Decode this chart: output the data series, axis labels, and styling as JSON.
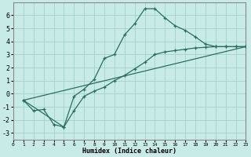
{
  "xlabel": "Humidex (Indice chaleur)",
  "background_color": "#c8ebe8",
  "grid_color": "#a8d5d0",
  "line_color": "#2a6e62",
  "xlim": [
    0,
    23
  ],
  "ylim": [
    -3.5,
    7.0
  ],
  "yticks": [
    -3,
    -2,
    -1,
    0,
    1,
    2,
    3,
    4,
    5,
    6
  ],
  "xticks": [
    0,
    1,
    2,
    3,
    4,
    5,
    6,
    7,
    8,
    9,
    10,
    11,
    12,
    13,
    14,
    15,
    16,
    17,
    18,
    19,
    20,
    21,
    22,
    23
  ],
  "line1_x": [
    1,
    2,
    3,
    4,
    5,
    6,
    7,
    8,
    9,
    10,
    11,
    12,
    13,
    14,
    15,
    16,
    17,
    18,
    19,
    20,
    21,
    22,
    23
  ],
  "line1_y": [
    -0.5,
    -1.3,
    -1.2,
    -2.35,
    -2.55,
    -0.2,
    0.35,
    1.1,
    2.7,
    3.0,
    4.5,
    5.35,
    6.5,
    6.5,
    5.8,
    5.2,
    4.85,
    4.35,
    3.8,
    3.6,
    3.6,
    3.6,
    3.6
  ],
  "line2_x": [
    1,
    5,
    6,
    7,
    8,
    9,
    10,
    11,
    12,
    13,
    14,
    15,
    16,
    17,
    18,
    19,
    20,
    21,
    22,
    23
  ],
  "line2_y": [
    -0.5,
    -2.55,
    -1.3,
    -0.2,
    0.2,
    0.5,
    1.0,
    1.4,
    1.9,
    2.4,
    3.0,
    3.2,
    3.3,
    3.4,
    3.5,
    3.55,
    3.6,
    3.6,
    3.6,
    3.6
  ],
  "line3_x": [
    1,
    23
  ],
  "line3_y": [
    -0.5,
    3.6
  ]
}
